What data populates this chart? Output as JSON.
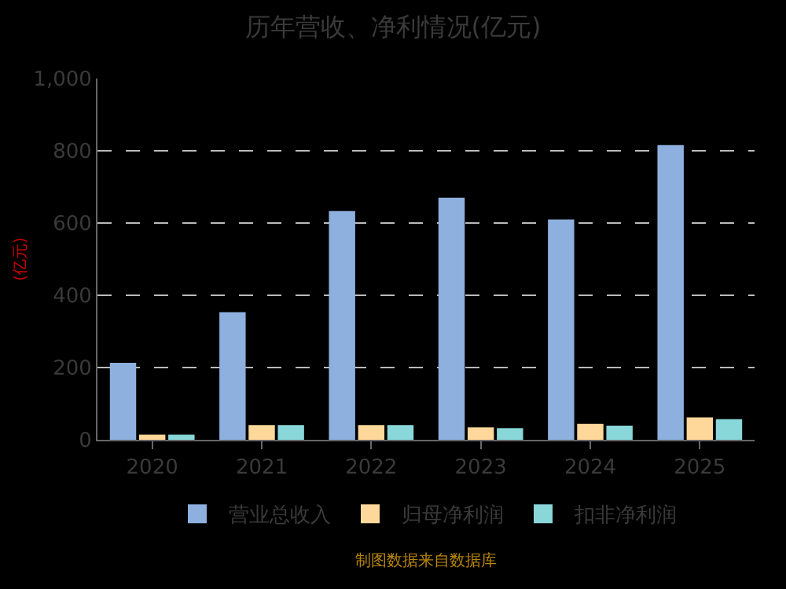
{
  "chart_data": {
    "type": "bar",
    "title": "历年营收、净利情况(亿元)",
    "ylabel": "(亿元)",
    "categories": [
      "2020",
      "2021",
      "2022",
      "2023",
      "2024",
      "2025"
    ],
    "series": [
      {
        "name": "营业总收入",
        "color": "#8eb0de",
        "values": [
          213,
          353,
          633,
          670,
          610,
          816
        ]
      },
      {
        "name": "归母净利润",
        "color": "#fdd89a",
        "values": [
          14,
          41,
          41,
          34,
          44,
          62
        ]
      },
      {
        "name": "扣非净利润",
        "color": "#89d7d8",
        "values": [
          14,
          41,
          41,
          32,
          39,
          57
        ]
      }
    ],
    "ylim": [
      0,
      1000
    ],
    "yticks": [
      0,
      200,
      400,
      600,
      800,
      {
        "value": 1000,
        "label": "1,000"
      }
    ],
    "grid": "y",
    "legend": "bottom",
    "annotations": [
      "制图数据来自数据库"
    ]
  }
}
